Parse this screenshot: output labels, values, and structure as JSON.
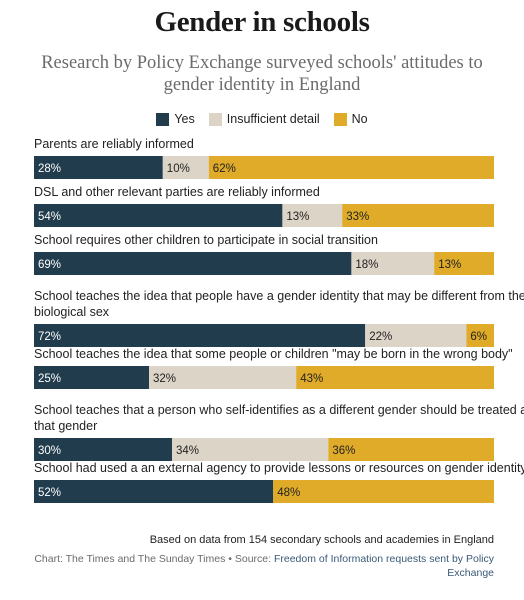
{
  "title": "Gender in schools",
  "subtitle": "Research by Policy Exchange surveyed schools' attitudes to gender identity in England",
  "colors": {
    "yes": "#213c4c",
    "insufficient": "#ddd4c8",
    "no": "#dfab28"
  },
  "chart_data": {
    "type": "bar",
    "orientation": "horizontal-stacked-100",
    "grid": false,
    "legend_position": "top-center",
    "series": [
      {
        "name": "Yes",
        "values": [
          28,
          54,
          69,
          72,
          25,
          30,
          52
        ]
      },
      {
        "name": "Insufficient detail",
        "values": [
          10,
          13,
          18,
          22,
          32,
          34,
          0
        ]
      },
      {
        "name": "No",
        "values": [
          62,
          33,
          13,
          6,
          43,
          36,
          48
        ]
      }
    ],
    "categories": [
      "Parents are reliably informed",
      "DSL and other relevant parties are reliably informed",
      "School requires other children to participate in social transition",
      "School teaches the idea that people have a gender identity that may be different from their biological sex",
      "School teaches the idea that some people or children \"may be born in the wrong body\"",
      "School teaches that a person who self-identifies as a different gender should be treated as that gender",
      "School had used a an external agency to provide lessons or resources on gender identity"
    ],
    "category_lines": [
      [
        "Parents are reliably informed"
      ],
      [
        "DSL and other relevant parties are reliably informed"
      ],
      [
        "School requires other children to participate in social transition"
      ],
      [
        "School teaches the idea that people have a gender identity that may be different from their",
        "biological sex"
      ],
      [
        "School teaches the idea that some people or children \"may be born in the wrong body\""
      ],
      [
        "School teaches that a person who self-identifies as a different gender should be treated as",
        "that gender"
      ],
      [
        "School had used a an external agency to provide lessons or resources on gender identity"
      ]
    ],
    "value_suffix": "%"
  },
  "footer": {
    "note": "Based on data from 154 secondary schools and academies in England",
    "credit": "Chart: The Times and The Sunday Times • Source: ",
    "source_link": "Freedom of Information requests sent by Policy Exchange"
  }
}
